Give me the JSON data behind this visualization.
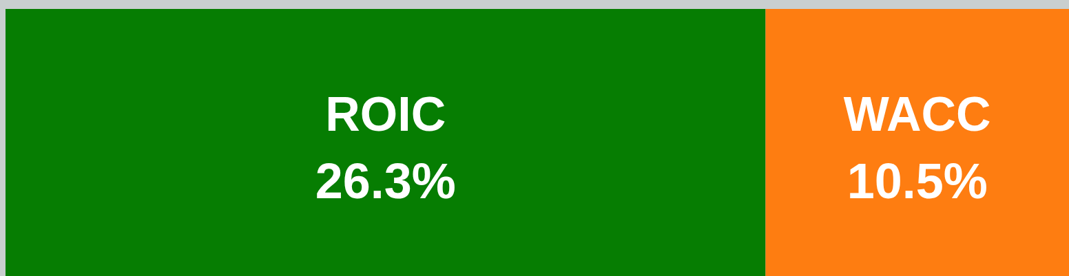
{
  "chart_data": {
    "type": "bar",
    "orientation": "horizontal",
    "stacked": true,
    "categories": [
      null
    ],
    "series": [
      {
        "name": "ROIC",
        "color": "#067d02",
        "values": [
          26.3
        ],
        "value_labels": [
          "26.3%"
        ]
      },
      {
        "name": "WACC",
        "color": "#fe7d11",
        "values": [
          10.5
        ],
        "value_labels": [
          "10.5%"
        ]
      }
    ]
  }
}
